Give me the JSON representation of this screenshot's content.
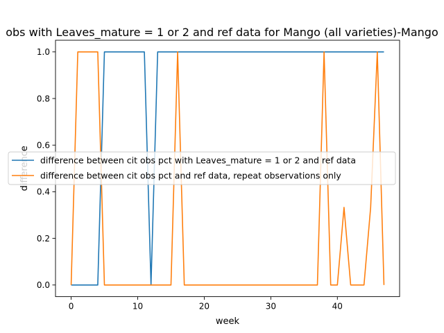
{
  "chart_data": {
    "type": "line",
    "title": "obs with Leaves_mature = 1 or 2 and ref data for Mango (all varieties)-Mango",
    "xlabel": "week",
    "ylabel": "difference",
    "xlim": [
      -2.35,
      49.35
    ],
    "ylim": [
      -0.05,
      1.05
    ],
    "xticks": [
      0,
      10,
      20,
      30,
      40
    ],
    "yticks": [
      0.0,
      0.2,
      0.4,
      0.6,
      0.8,
      1.0
    ],
    "grid": false,
    "legend_position": "center-left",
    "series": [
      {
        "name": "difference between cit obs pct with Leaves_mature = 1 or 2 and ref data",
        "color": "#1f77b4",
        "x": [
          0,
          1,
          2,
          3,
          4,
          5,
          6,
          7,
          8,
          9,
          10,
          11,
          12,
          13,
          14,
          15,
          16,
          17,
          18,
          19,
          20,
          21,
          22,
          23,
          24,
          25,
          26,
          27,
          28,
          29,
          30,
          31,
          32,
          33,
          34,
          35,
          36,
          37,
          38,
          39,
          40,
          41,
          42,
          43,
          44,
          45,
          46,
          47
        ],
        "y": [
          0,
          0,
          0,
          0,
          0,
          1,
          1,
          1,
          1,
          1,
          1,
          1,
          0,
          1,
          1,
          1,
          1,
          1,
          1,
          1,
          1,
          1,
          1,
          1,
          1,
          1,
          1,
          1,
          1,
          1,
          1,
          1,
          1,
          1,
          1,
          1,
          1,
          1,
          1,
          1,
          1,
          1,
          1,
          1,
          1,
          1,
          1,
          1
        ]
      },
      {
        "name": "difference between cit obs pct and ref data, repeat observations only",
        "color": "#ff7f0e",
        "x": [
          0,
          1,
          2,
          3,
          4,
          5,
          6,
          7,
          8,
          9,
          10,
          11,
          12,
          13,
          14,
          15,
          16,
          17,
          18,
          19,
          20,
          21,
          22,
          23,
          24,
          25,
          26,
          27,
          28,
          29,
          30,
          31,
          32,
          33,
          34,
          35,
          36,
          37,
          38,
          39,
          40,
          41,
          42,
          43,
          44,
          45,
          46,
          47
        ],
        "y": [
          0,
          1,
          1,
          1,
          1,
          0,
          0,
          0,
          0,
          0,
          0,
          0,
          0,
          0,
          0,
          0,
          1,
          0,
          0,
          0,
          0,
          0,
          0,
          0,
          0,
          0,
          0,
          0,
          0,
          0,
          0,
          0,
          0,
          0,
          0,
          0,
          0,
          0,
          1,
          0,
          0,
          0.333,
          0,
          0,
          0,
          0.333,
          1,
          0
        ]
      }
    ]
  }
}
